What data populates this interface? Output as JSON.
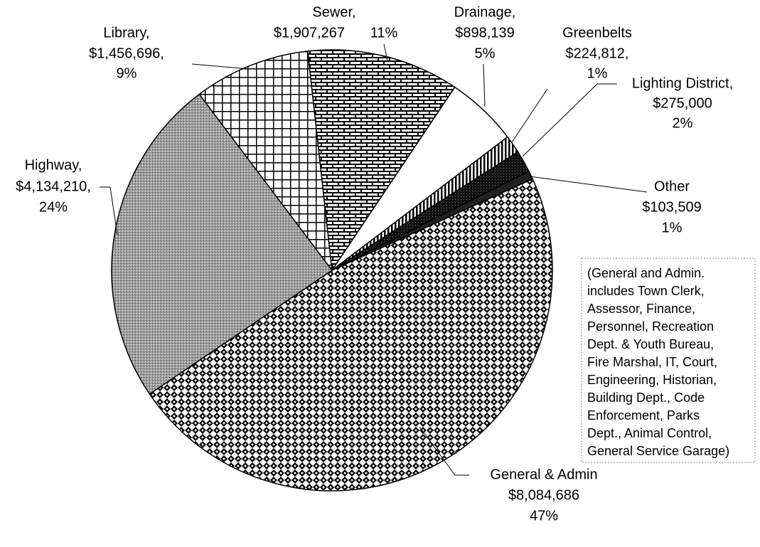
{
  "chart_data": {
    "type": "pie",
    "categories": [
      "General & Admin",
      "Highway,",
      "Library,",
      "Sewer,",
      "Drainage,",
      "Greenbelts",
      "Lighting District,",
      "Other"
    ],
    "values": [
      8084686,
      4134210,
      1456696,
      1907267,
      898139,
      224812,
      275000,
      103509
    ],
    "value_labels": [
      "$8,084,686",
      "$4,134,210,",
      "$1,456,696,",
      "$1,907,267",
      "$898,139",
      "$224,812,",
      "$275,000",
      "$103,509"
    ],
    "percents": [
      47,
      24,
      9,
      11,
      5,
      1,
      2,
      1
    ],
    "percent_labels": [
      "47%",
      "24%",
      "9%",
      "11%",
      "5%",
      "1%",
      "2%",
      "1%"
    ],
    "annotation": [
      "(General and Admin.",
      "includes Town Clerk,",
      "Assessor, Finance,",
      "Personnel, Recreation",
      "Dept. & Youth Bureau,",
      "Fire Marshal, IT, Court,",
      "Engineering, Historian,",
      "Building Dept., Code",
      "Enforcement, Parks",
      "Dept., Animal Control,",
      "General Service Garage)"
    ]
  }
}
